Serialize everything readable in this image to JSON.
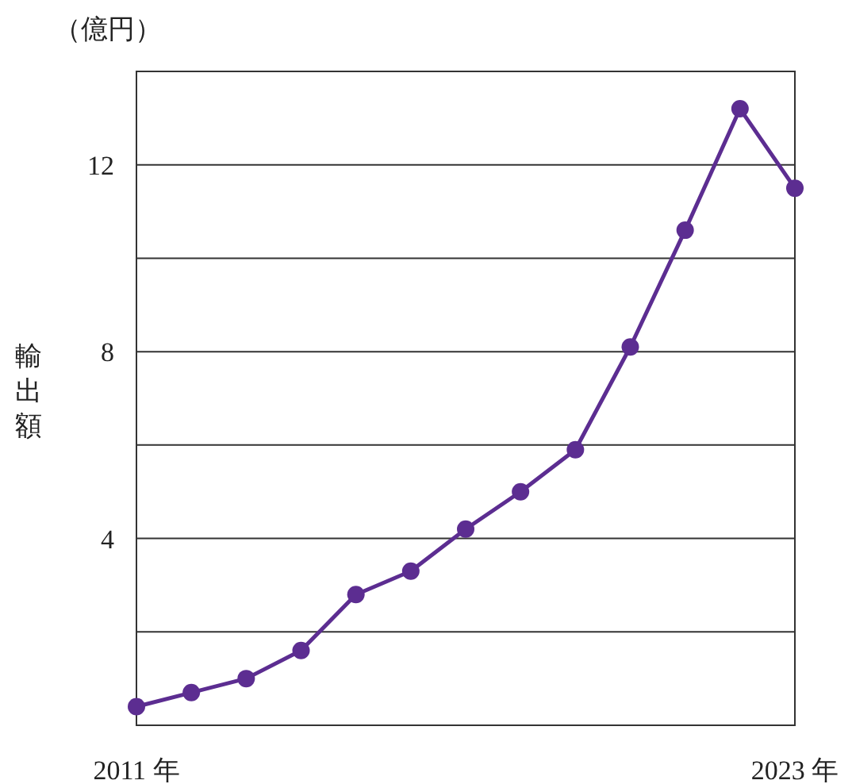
{
  "chart_data": {
    "type": "line",
    "ylabel": "輸出額",
    "annotations": [
      "（億円）"
    ],
    "x": [
      2011,
      2012,
      2013,
      2014,
      2015,
      2016,
      2017,
      2018,
      2019,
      2020,
      2021,
      2022,
      2023
    ],
    "series": [
      {
        "color": "#5c2d91",
        "values": [
          0.4,
          0.7,
          1.0,
          1.6,
          2.8,
          3.3,
          4.2,
          5.0,
          5.9,
          8.1,
          10.6,
          13.2,
          11.5
        ]
      }
    ],
    "xlim": [
      2011,
      2023
    ],
    "xticks": [
      {
        "value": 2011,
        "label": "2011 年"
      },
      {
        "value": 2023,
        "label": "2023 年"
      }
    ],
    "ylim": [
      0,
      14
    ],
    "yticks": [
      {
        "value": 0,
        "label": null
      },
      {
        "value": 2,
        "label": null
      },
      4,
      {
        "value": 6,
        "label": null
      },
      8,
      {
        "value": 10,
        "label": null
      },
      12,
      {
        "value": 14,
        "label": null
      }
    ],
    "grid": "y",
    "marker": "circle",
    "line_style": "solid"
  }
}
